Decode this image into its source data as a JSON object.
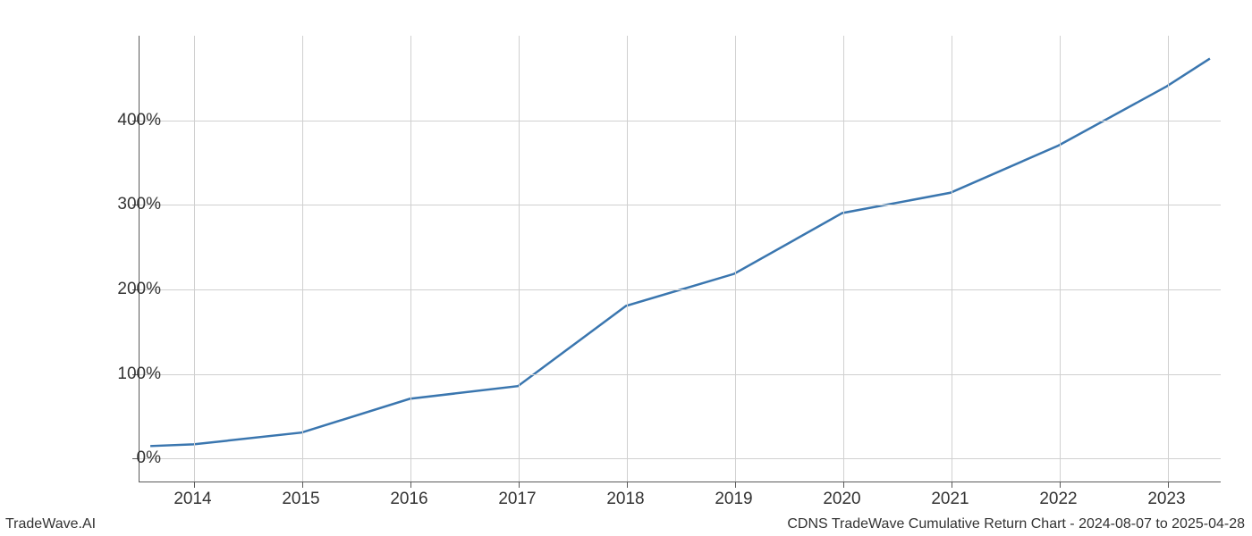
{
  "chart": {
    "type": "line",
    "x_values": [
      2013.6,
      2014,
      2015,
      2016,
      2017,
      2018,
      2019,
      2020,
      2021,
      2022,
      2023,
      2023.4
    ],
    "y_values": [
      14,
      16,
      30,
      70,
      85,
      180,
      218,
      290,
      314,
      370,
      440,
      473
    ],
    "x_ticks": [
      2014,
      2015,
      2016,
      2017,
      2018,
      2019,
      2020,
      2021,
      2022,
      2023
    ],
    "x_tick_labels": [
      "2014",
      "2015",
      "2016",
      "2017",
      "2018",
      "2019",
      "2020",
      "2021",
      "2022",
      "2023"
    ],
    "y_ticks": [
      0,
      100,
      200,
      300,
      400
    ],
    "y_tick_labels": [
      "0%",
      "100%",
      "200%",
      "300%",
      "400%"
    ],
    "xlim": [
      2013.5,
      2023.5
    ],
    "ylim": [
      -28,
      500
    ],
    "line_color": "#3a76af",
    "line_width": 2.5,
    "grid_color": "#d0d0d0",
    "axis_color": "#5a5a5a",
    "background_color": "#ffffff",
    "tick_fontsize": 19,
    "footer_fontsize": 16
  },
  "footer": {
    "left": "TradeWave.AI",
    "right": "CDNS TradeWave Cumulative Return Chart - 2024-08-07 to 2025-04-28"
  }
}
